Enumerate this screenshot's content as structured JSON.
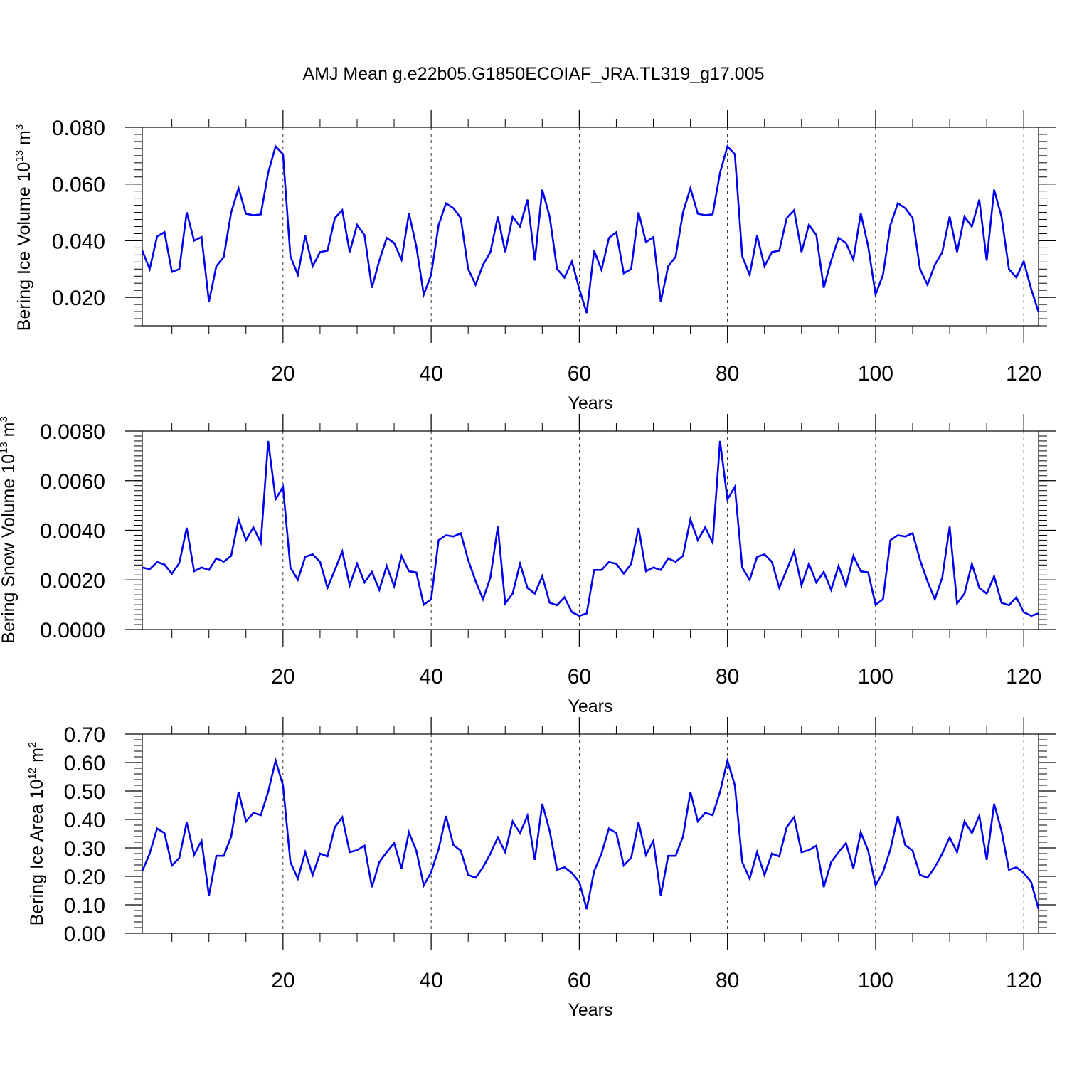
{
  "figure_title": "AMJ Mean g.e22b05.G1850ECOIAF_JRA.TL319_g17.005",
  "chart_data": [
    {
      "type": "line",
      "title": "AMJ Mean g.e22b05.G1850ECOIAF_JRA.TL319_g17.005",
      "xlabel": "Years",
      "ylabel": {
        "text": "Bering Ice Volume 10",
        "exp": "13",
        "unit": " m",
        "unit_exp": "3"
      },
      "xlim": [
        1,
        122
      ],
      "ylim": [
        0.01,
        0.08
      ],
      "xticks": [
        20,
        40,
        60,
        80,
        100,
        120
      ],
      "xtick_labels": [
        "20",
        "40",
        "60",
        "80",
        "100",
        "120"
      ],
      "yticks": [
        0.02,
        0.04,
        0.06,
        0.08
      ],
      "ytick_labels": [
        "0.020",
        "0.040",
        "0.060",
        "0.080"
      ],
      "grid_x_dashed": [
        20,
        40,
        60,
        80,
        100,
        120
      ],
      "line_color": "#0000ee",
      "series": [
        {
          "name": "Bering Ice Volume",
          "values": [
            0.0365,
            0.03,
            0.0415,
            0.043,
            0.029,
            0.03,
            0.05,
            0.04,
            0.0413,
            0.0185,
            0.031,
            0.0343,
            0.05,
            0.0585,
            0.0495,
            0.049,
            0.0493,
            0.064,
            0.0733,
            0.0705,
            0.0345,
            0.028,
            0.0418,
            0.031,
            0.036,
            0.0365,
            0.048,
            0.0508,
            0.036,
            0.0456,
            0.042,
            0.0234,
            0.033,
            0.041,
            0.0392,
            0.0333,
            0.0497,
            0.038,
            0.021,
            0.028,
            0.0455,
            0.0532,
            0.0515,
            0.048,
            0.03,
            0.0245,
            0.0315,
            0.036,
            0.0485,
            0.036,
            0.0485,
            0.045,
            0.0545,
            0.033,
            0.058,
            0.0485,
            0.03,
            0.027,
            0.0327,
            0.023,
            0.0145,
            0.0365,
            0.0297,
            0.041,
            0.043,
            0.0285,
            0.03,
            0.05,
            0.0395,
            0.0413,
            0.0185,
            0.031,
            0.0343,
            0.05,
            0.0585,
            0.0495,
            0.049,
            0.0493,
            0.064,
            0.0733,
            0.0705,
            0.0345,
            0.028,
            0.0418,
            0.031,
            0.036,
            0.0365,
            0.048,
            0.0508,
            0.036,
            0.0456,
            0.042,
            0.0234,
            0.033,
            0.041,
            0.0392,
            0.0333,
            0.0497,
            0.038,
            0.021,
            0.028,
            0.0455,
            0.0532,
            0.0515,
            0.048,
            0.03,
            0.0245,
            0.0315,
            0.036,
            0.0485,
            0.036,
            0.0485,
            0.045,
            0.0545,
            0.033,
            0.058,
            0.0485,
            0.03,
            0.027,
            0.0327,
            0.023,
            0.0148
          ]
        }
      ]
    },
    {
      "type": "line",
      "xlabel": "Years",
      "ylabel": {
        "text": "Bering Snow Volume 10",
        "exp": "13",
        "unit": " m",
        "unit_exp": "3"
      },
      "xlim": [
        1,
        122
      ],
      "ylim": [
        0.0,
        0.008
      ],
      "xticks": [
        20,
        40,
        60,
        80,
        100,
        120
      ],
      "xtick_labels": [
        "20",
        "40",
        "60",
        "80",
        "100",
        "120"
      ],
      "yticks": [
        0.0,
        0.002,
        0.004,
        0.006,
        0.008
      ],
      "ytick_labels": [
        "0.0000",
        "0.0020",
        "0.0040",
        "0.0060",
        "0.0080"
      ],
      "grid_x_dashed": [
        20,
        40,
        60,
        80,
        100,
        120
      ],
      "line_color": "#0000ee",
      "series": [
        {
          "name": "Bering Snow Volume",
          "values": [
            0.0025,
            0.00243,
            0.00272,
            0.00262,
            0.00225,
            0.00268,
            0.0041,
            0.00235,
            0.0025,
            0.0024,
            0.00287,
            0.00273,
            0.00297,
            0.00444,
            0.0036,
            0.00412,
            0.0035,
            0.0076,
            0.00525,
            0.00575,
            0.0025,
            0.002,
            0.00293,
            0.00303,
            0.00273,
            0.00168,
            0.0024,
            0.00315,
            0.00178,
            0.00265,
            0.0019,
            0.00232,
            0.0016,
            0.00256,
            0.00175,
            0.00297,
            0.00235,
            0.0023,
            0.001,
            0.00122,
            0.0036,
            0.0038,
            0.00375,
            0.00388,
            0.0028,
            0.00195,
            0.00122,
            0.0021,
            0.00415,
            0.00105,
            0.00145,
            0.00265,
            0.00168,
            0.00145,
            0.00215,
            0.00108,
            0.00098,
            0.0013,
            0.0007,
            0.00055,
            0.00065,
            0.0024,
            0.0024,
            0.00272,
            0.00265,
            0.00225,
            0.00265,
            0.0041,
            0.00235,
            0.0025,
            0.0024,
            0.00287,
            0.00273,
            0.00297,
            0.00444,
            0.0036,
            0.00412,
            0.0035,
            0.0076,
            0.00525,
            0.00575,
            0.0025,
            0.002,
            0.00293,
            0.00303,
            0.00273,
            0.00168,
            0.0024,
            0.00315,
            0.00178,
            0.00265,
            0.0019,
            0.00232,
            0.0016,
            0.00256,
            0.00175,
            0.00297,
            0.00235,
            0.0023,
            0.001,
            0.00122,
            0.0036,
            0.0038,
            0.00375,
            0.00388,
            0.0028,
            0.00195,
            0.00122,
            0.0021,
            0.00415,
            0.00105,
            0.00145,
            0.00265,
            0.00168,
            0.00145,
            0.00215,
            0.00108,
            0.00098,
            0.0013,
            0.0007,
            0.00055,
            0.00065
          ]
        }
      ]
    },
    {
      "type": "line",
      "xlabel": "Years",
      "ylabel": {
        "text": "Bering Ice Area 10",
        "exp": "12",
        "unit": " m",
        "unit_exp": "2"
      },
      "xlim": [
        1,
        122
      ],
      "ylim": [
        0.0,
        0.7
      ],
      "xticks": [
        20,
        40,
        60,
        80,
        100,
        120
      ],
      "xtick_labels": [
        "20",
        "40",
        "60",
        "80",
        "100",
        "120"
      ],
      "yticks": [
        0.0,
        0.1,
        0.2,
        0.3,
        0.4,
        0.5,
        0.6,
        0.7
      ],
      "ytick_labels": [
        "0.00",
        "0.10",
        "0.20",
        "0.30",
        "0.40",
        "0.50",
        "0.60",
        "0.70"
      ],
      "grid_x_dashed": [
        20,
        40,
        60,
        80,
        100,
        120
      ],
      "line_color": "#0000ee",
      "series": [
        {
          "name": "Bering Ice Area",
          "values": [
            0.218,
            0.28,
            0.368,
            0.352,
            0.238,
            0.265,
            0.39,
            0.275,
            0.325,
            0.132,
            0.272,
            0.272,
            0.34,
            0.497,
            0.393,
            0.423,
            0.415,
            0.497,
            0.607,
            0.52,
            0.25,
            0.192,
            0.285,
            0.205,
            0.28,
            0.27,
            0.373,
            0.408,
            0.285,
            0.292,
            0.308,
            0.162,
            0.25,
            0.285,
            0.317,
            0.228,
            0.355,
            0.29,
            0.168,
            0.215,
            0.295,
            0.412,
            0.31,
            0.29,
            0.205,
            0.195,
            0.232,
            0.28,
            0.337,
            0.285,
            0.393,
            0.352,
            0.413,
            0.258,
            0.455,
            0.36,
            0.223,
            0.232,
            0.212,
            0.18,
            0.085,
            0.218,
            0.28,
            0.368,
            0.352,
            0.238,
            0.265,
            0.39,
            0.275,
            0.325,
            0.132,
            0.272,
            0.272,
            0.34,
            0.497,
            0.393,
            0.423,
            0.415,
            0.497,
            0.607,
            0.52,
            0.25,
            0.192,
            0.285,
            0.205,
            0.28,
            0.27,
            0.373,
            0.408,
            0.285,
            0.292,
            0.308,
            0.162,
            0.25,
            0.285,
            0.317,
            0.228,
            0.355,
            0.29,
            0.168,
            0.215,
            0.295,
            0.412,
            0.31,
            0.29,
            0.205,
            0.195,
            0.232,
            0.28,
            0.337,
            0.285,
            0.393,
            0.352,
            0.413,
            0.258,
            0.455,
            0.36,
            0.223,
            0.232,
            0.212,
            0.18,
            0.085
          ]
        }
      ]
    }
  ]
}
